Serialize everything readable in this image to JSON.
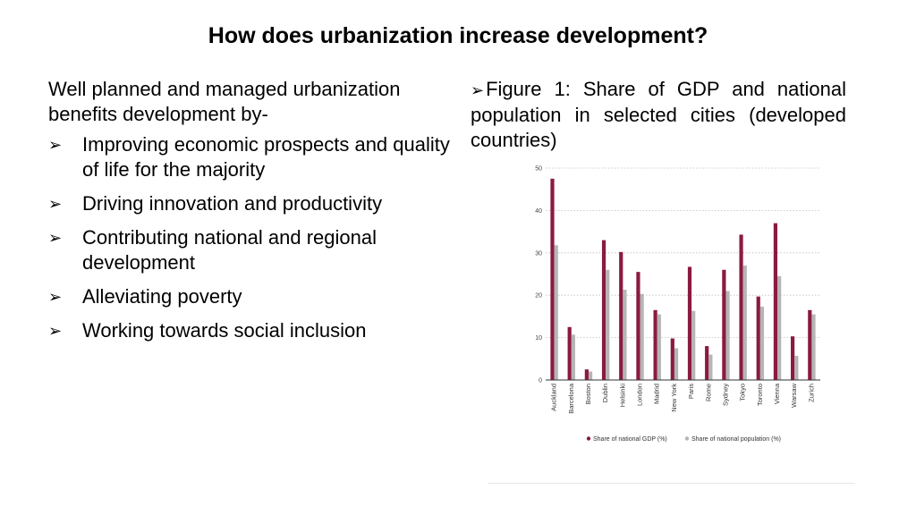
{
  "title": "How does urbanization increase development?",
  "left": {
    "intro": "Well planned and managed urbanization benefits development by-",
    "bullets": [
      "Improving economic prospects and quality of life for the majority",
      "Driving innovation and productivity",
      "Contributing national and regional development",
      "Alleviating  poverty",
      "Working towards social inclusion"
    ]
  },
  "right": {
    "caption": "Figure 1: Share of GDP and national population in selected cities (developed countries)"
  },
  "chart_data": {
    "type": "bar",
    "categories": [
      "Auckland",
      "Barcelona",
      "Boston",
      "Dublin",
      "Helsinki",
      "London",
      "Madrid",
      "New York",
      "Paris",
      "Rome",
      "Sydney",
      "Tokyo",
      "Toronto",
      "Vienna",
      "Warsaw",
      "Zurich"
    ],
    "series": [
      {
        "name": "Share of national GDP (%)",
        "color": "#8b1a3f",
        "values": [
          47.5,
          12.5,
          2.5,
          33,
          30.2,
          25.5,
          16.5,
          9.8,
          26.7,
          8,
          26,
          34.3,
          19.7,
          37,
          10.3,
          16.5
        ]
      },
      {
        "name": "Share of national population (%)",
        "color": "#b5b5b5",
        "values": [
          31.8,
          10.7,
          2,
          26,
          21.3,
          20.3,
          15.5,
          7.5,
          16.3,
          6,
          21,
          27,
          17.3,
          24.5,
          5.7,
          15.5
        ]
      }
    ],
    "ylim": [
      0,
      50
    ],
    "yticks": [
      0,
      10,
      20,
      30,
      40,
      50
    ],
    "grid": true,
    "legend": "bottom"
  }
}
